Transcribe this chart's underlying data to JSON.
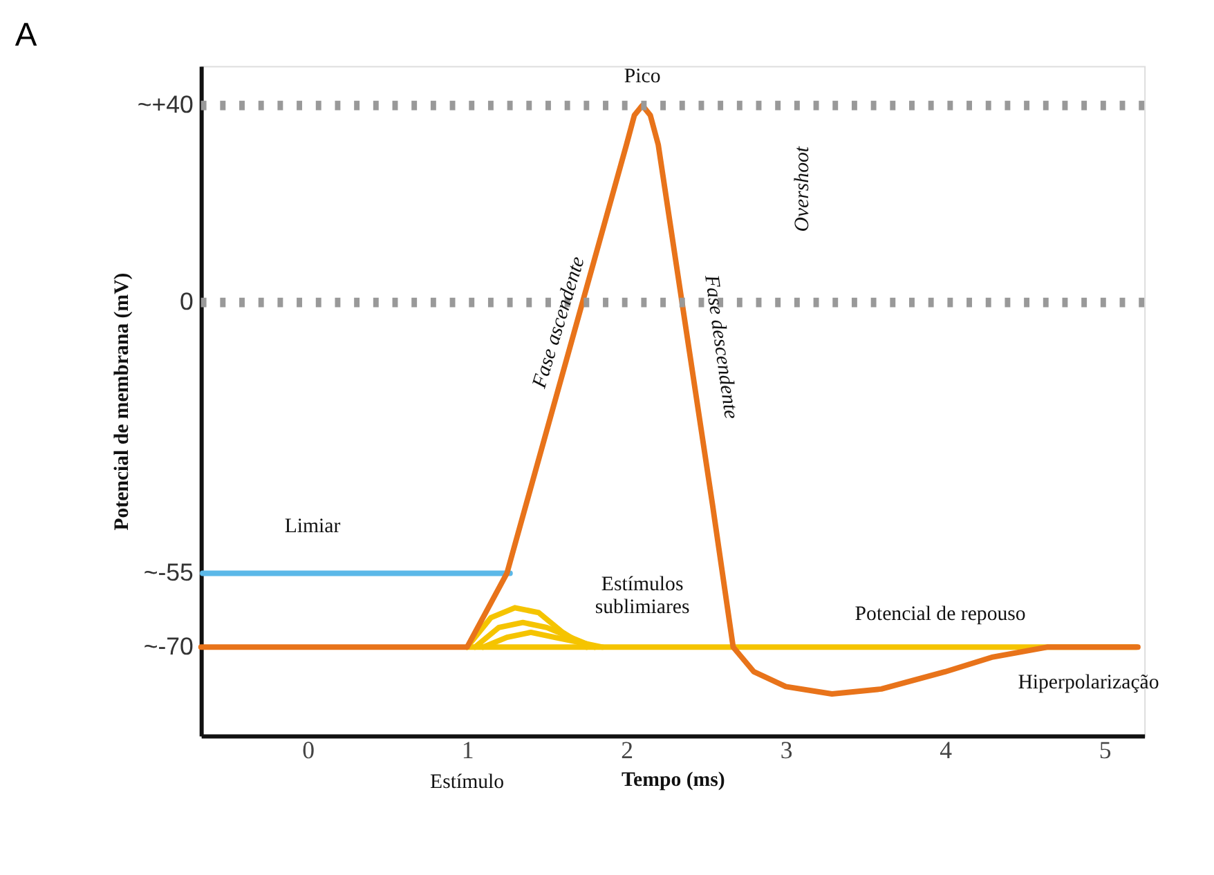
{
  "chart_data": {
    "type": "line",
    "title": "A",
    "xlabel": "Tempo (ms)",
    "ylabel": "Potencial de membrana (mV)",
    "xlim": [
      -0.67,
      5.25
    ],
    "ylim": [
      -88,
      48
    ],
    "xticks": [
      0,
      1,
      2,
      3,
      4,
      5
    ],
    "yticks": [
      {
        "value": 40,
        "label": "~+40"
      },
      0,
      {
        "value": -55,
        "label": "~-55"
      },
      {
        "value": -70,
        "label": "~-70"
      }
    ],
    "grid": false,
    "legend": false,
    "marker": "none",
    "line_style": "solid",
    "series": [
      {
        "color": "#5bb8e8",
        "x": [
          -0.66,
          1.27
        ],
        "values": [
          -55,
          -55
        ]
      },
      {
        "color": "#f5c400",
        "x": [
          1.0,
          5.2
        ],
        "values": [
          -70,
          -70
        ]
      },
      {
        "color": "#f5c400",
        "x": [
          1.0,
          1.15,
          1.3,
          1.45,
          1.6,
          1.75
        ],
        "values": [
          -70,
          -64,
          -62,
          -63,
          -67,
          -70
        ]
      },
      {
        "color": "#f5c400",
        "x": [
          1.05,
          1.2,
          1.35,
          1.5,
          1.65,
          1.8
        ],
        "values": [
          -70,
          -66,
          -65,
          -66,
          -68,
          -70
        ]
      },
      {
        "color": "#f5c400",
        "x": [
          1.1,
          1.25,
          1.4,
          1.55,
          1.7,
          1.85
        ],
        "values": [
          -70,
          -68,
          -67,
          -68,
          -69,
          -70
        ]
      },
      {
        "color": "#e8731a",
        "x": [
          -0.67,
          1.0,
          1.25,
          2.0,
          2.05,
          2.1,
          2.15,
          2.2,
          2.54,
          2.67,
          2.8,
          3.0,
          3.29,
          3.6,
          4.0,
          4.3,
          4.64,
          5.21
        ],
        "values": [
          -70,
          -70,
          -55,
          32,
          38,
          40,
          38,
          32,
          -41,
          -70,
          -75,
          -78,
          -79.5,
          -78.5,
          -75,
          -72,
          -70,
          -70
        ]
      }
    ],
    "ref_lines": [
      {
        "axis": "y",
        "value": 40,
        "color": "#999999",
        "line_style": "dotted"
      },
      {
        "axis": "y",
        "value": 0,
        "color": "#999999",
        "line_style": "dotted"
      }
    ],
    "annotations": [
      {
        "text": "Pico",
        "x": 2.1,
        "y": 40
      },
      "Fase ascendente",
      "Fase descendente",
      "Overshoot",
      {
        "text": "Limiar",
        "x": 0.03,
        "y": -55
      },
      "Estímulos sublimiares",
      {
        "text": "Potencial de repouso",
        "x": 3.97,
        "y": -70
      },
      "Hiperpolarização",
      "Estímulo"
    ]
  }
}
